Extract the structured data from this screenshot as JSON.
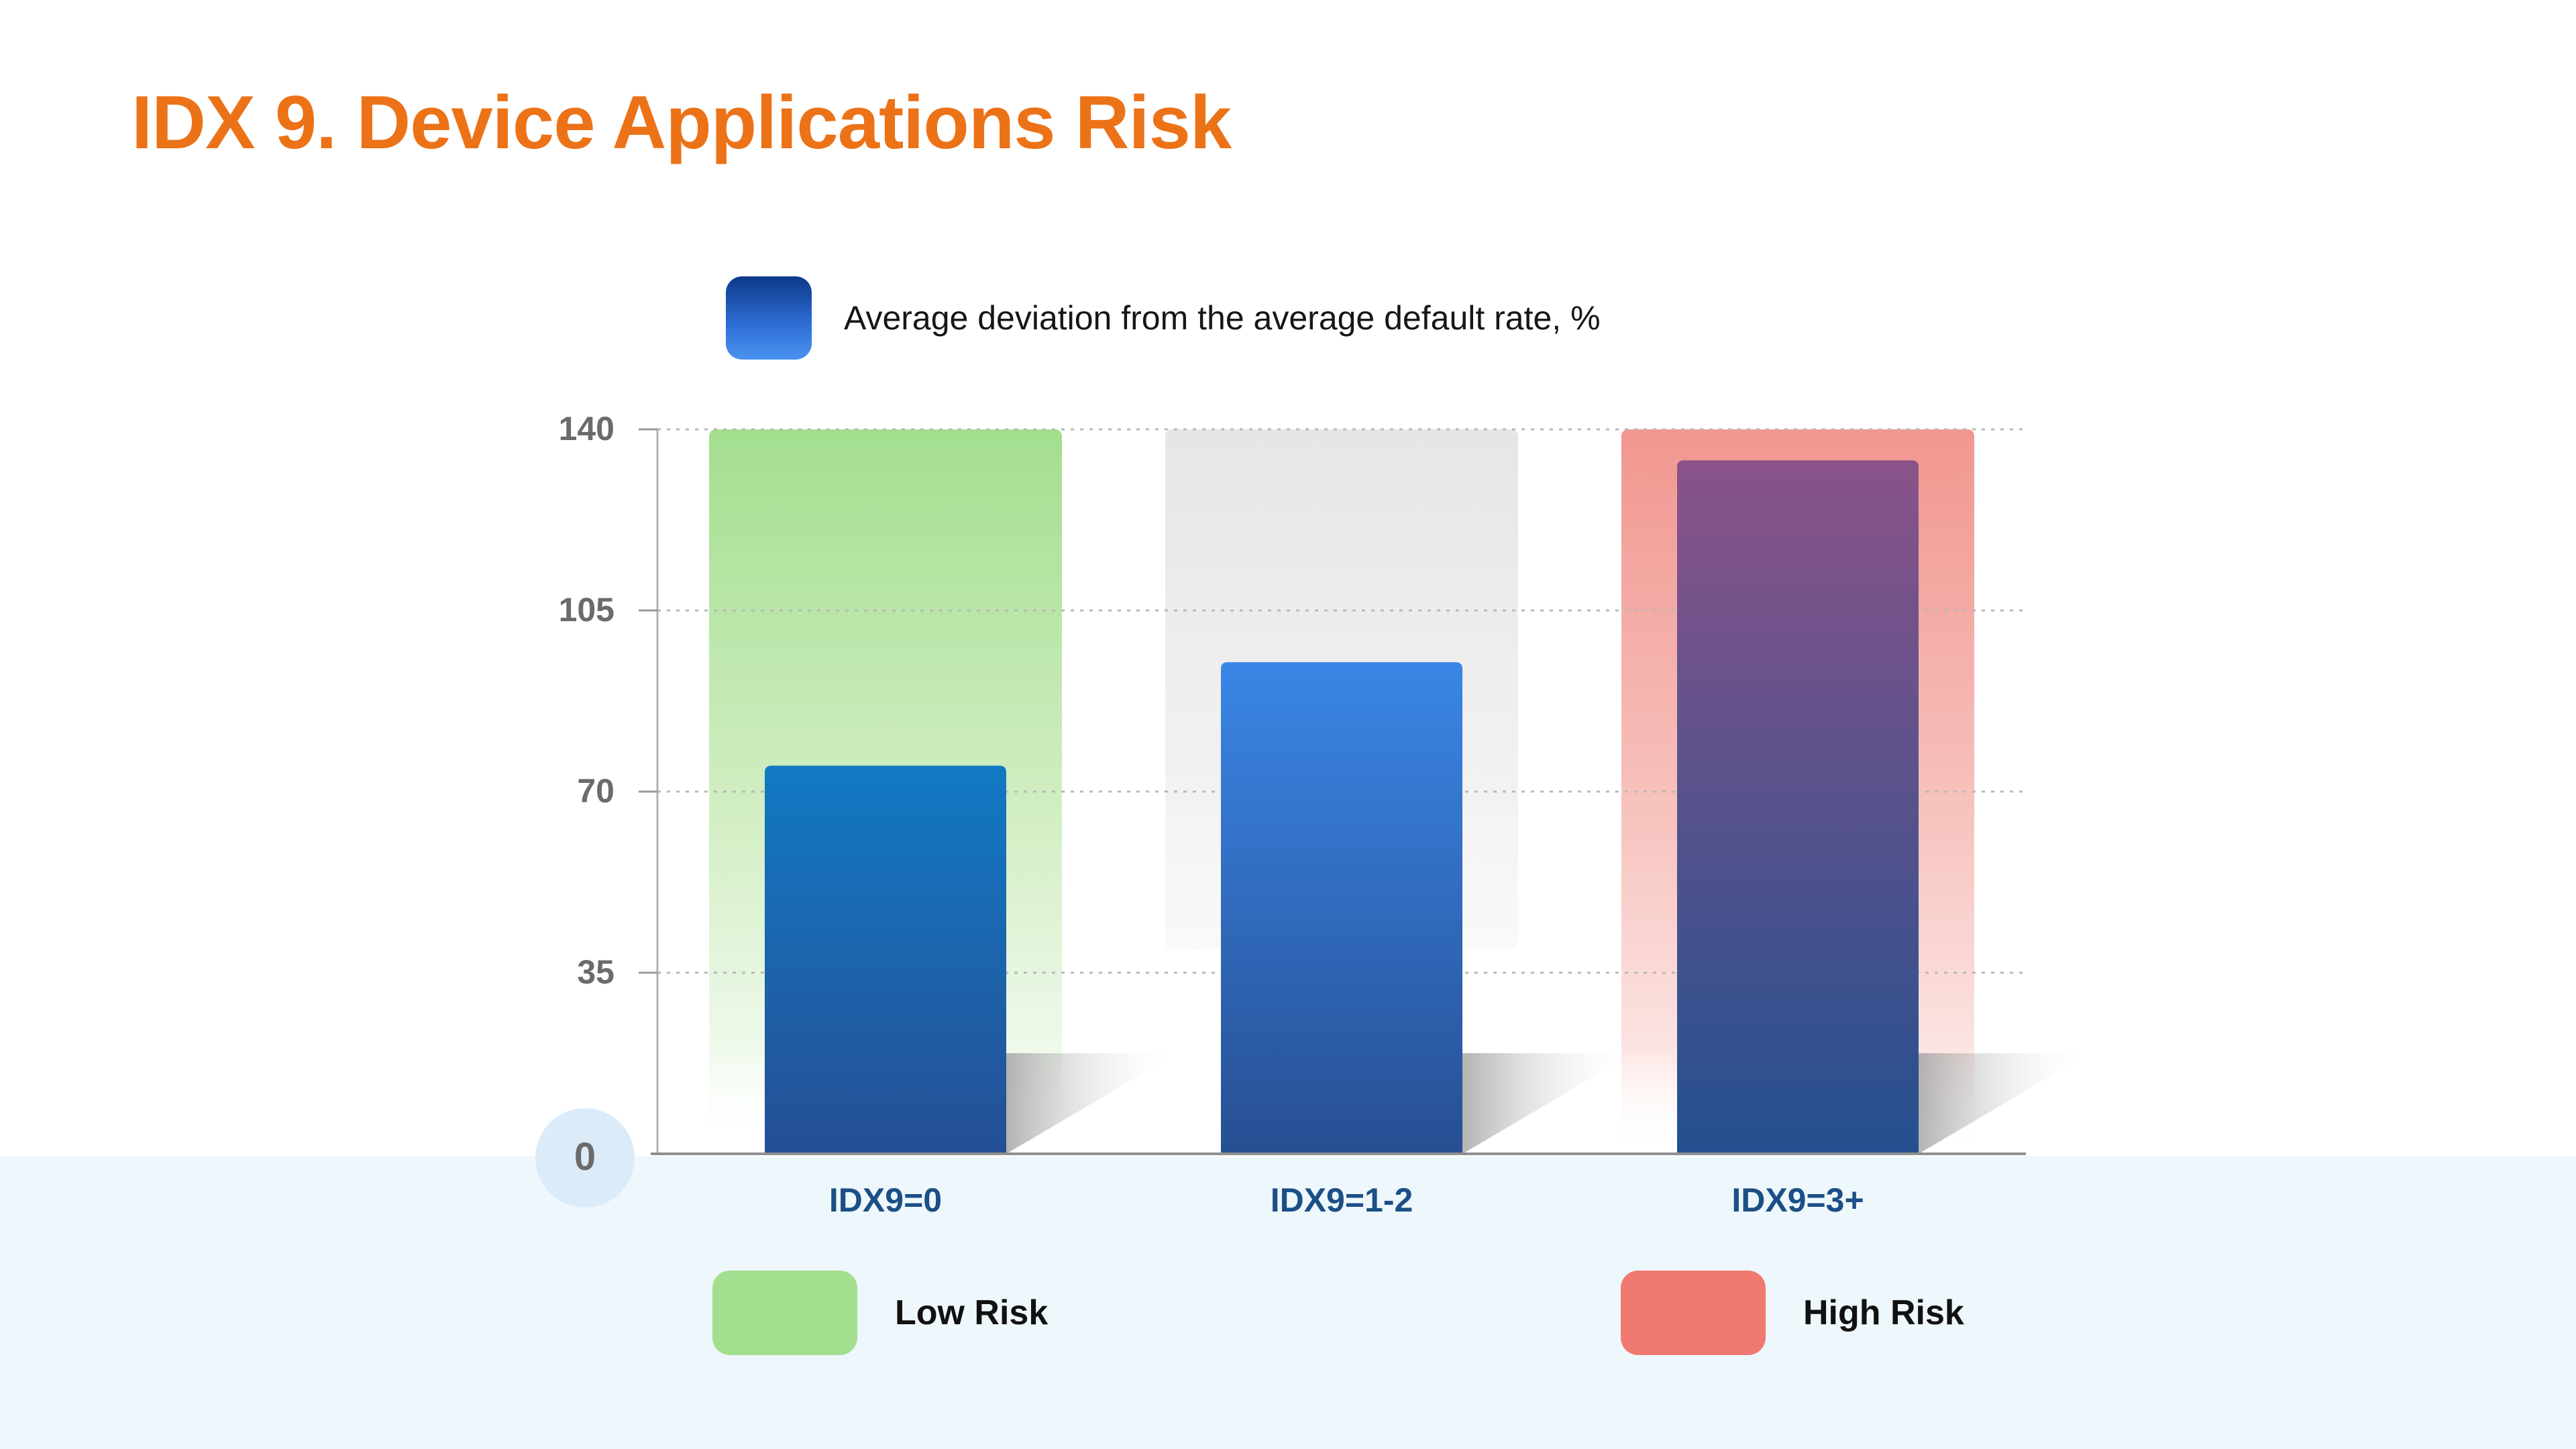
{
  "header": {
    "title": "IDX 9. Device Applications Risk"
  },
  "chart_data": {
    "type": "bar",
    "categories": [
      "IDX9=0",
      "IDX9=1-2",
      "IDX9=3+"
    ],
    "series": [
      {
        "name": "Average deviation from the average default rate, %",
        "values": [
          75,
          95,
          134
        ]
      }
    ],
    "yticks": [
      0,
      35,
      70,
      105,
      140
    ],
    "ylim": [
      0,
      140
    ],
    "grid": true,
    "legend_position": "top",
    "risk_backgrounds": [
      "low",
      "neutral",
      "high"
    ]
  },
  "risk_legend": {
    "low_label": "Low Risk",
    "high_label": "High Risk"
  },
  "colors": {
    "title": "#ec7217",
    "low_risk": "#a3de8e",
    "high_risk": "#f07a72",
    "neutral": "#e9e9e9",
    "axis_text": "#6b6b6b",
    "category_text": "#1b4f86"
  }
}
